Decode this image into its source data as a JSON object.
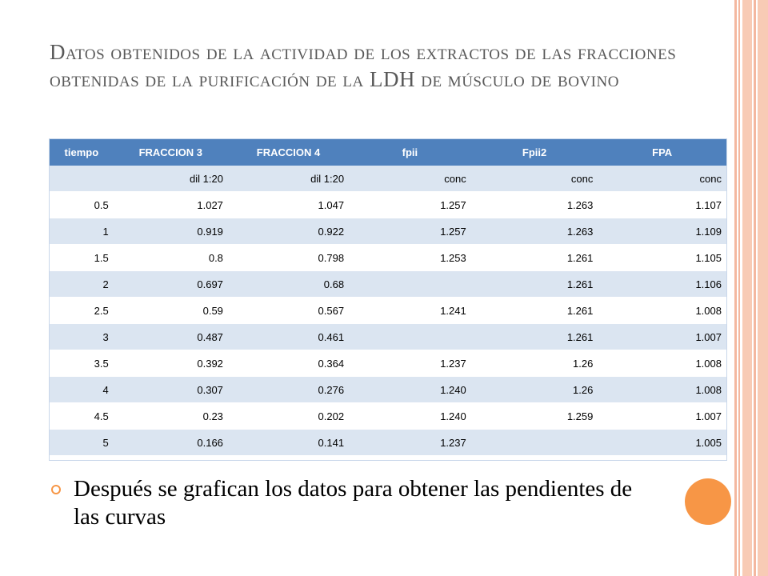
{
  "slide": {
    "title": "Datos obtenidos de la actividad de los extractos de las fracciones obtenidas de la purificación de la LDH de músculo de bovino",
    "bullet_text": "Después se grafican los datos para obtener las pendientes de las curvas",
    "colors": {
      "header_bg": "#4f81bd",
      "row_alt_bg": "#dbe5f1",
      "accent_orange": "#f79646",
      "title_color": "#595959"
    }
  },
  "table": {
    "headers": [
      "tiempo",
      "FRACCION 3",
      "FRACCION 4",
      "fpii",
      "Fpii2",
      "FPA"
    ],
    "rows": [
      [
        "",
        "dil 1:20",
        "dil 1:20",
        "conc",
        "conc",
        "conc"
      ],
      [
        "0.5",
        "1.027",
        "1.047",
        "1.257",
        "1.263",
        "1.107"
      ],
      [
        "1",
        "0.919",
        "0.922",
        "1.257",
        "1.263",
        "1.109"
      ],
      [
        "1.5",
        "0.8",
        "0.798",
        "1.253",
        "1.261",
        "1.105"
      ],
      [
        "2",
        "0.697",
        "0.68",
        "",
        "1.261",
        "1.106"
      ],
      [
        "2.5",
        "0.59",
        "0.567",
        "1.241",
        "1.261",
        "1.008"
      ],
      [
        "3",
        "0.487",
        "0.461",
        "",
        "1.261",
        "1.007"
      ],
      [
        "3.5",
        "0.392",
        "0.364",
        "1.237",
        "1.26",
        "1.008"
      ],
      [
        "4",
        "0.307",
        "0.276",
        "1.240",
        "1.26",
        "1.008"
      ],
      [
        "4.5",
        "0.23",
        "0.202",
        "1.240",
        "1.259",
        "1.007"
      ],
      [
        "5",
        "0.166",
        "0.141",
        "1.237",
        "",
        "1.005"
      ]
    ]
  }
}
